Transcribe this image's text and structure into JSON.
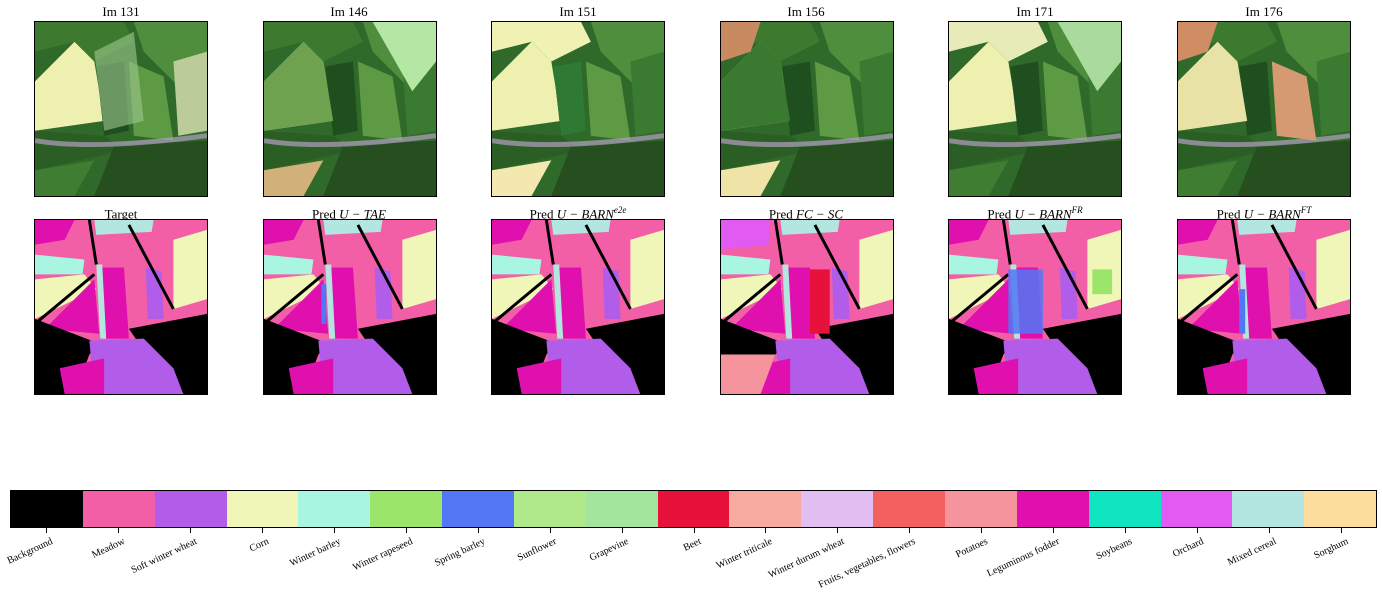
{
  "chart_data": {
    "type": "image_grid_with_categorical_colorbar",
    "rows": [
      {
        "kind": "satellite_image",
        "panels": [
          {
            "title": "Im 131"
          },
          {
            "title": "Im 146"
          },
          {
            "title": "Im 151"
          },
          {
            "title": "Im 156"
          },
          {
            "title": "Im 171"
          },
          {
            "title": "Im 176"
          }
        ]
      },
      {
        "kind": "segmentation_map",
        "panels": [
          {
            "prefix": "Target",
            "model": "",
            "sup": ""
          },
          {
            "prefix": "Pred ",
            "model": "U − TAE",
            "sup": ""
          },
          {
            "prefix": "Pred ",
            "model": "U − BARN",
            "sup": "e2e"
          },
          {
            "prefix": "Pred ",
            "model": "FC − SC",
            "sup": ""
          },
          {
            "prefix": "Pred ",
            "model": "U − BARN",
            "sup": "FR"
          },
          {
            "prefix": "Pred ",
            "model": "U − BARN",
            "sup": "FT"
          }
        ]
      }
    ],
    "colorbar": {
      "classes": [
        {
          "label": "Background",
          "color": "#000000"
        },
        {
          "label": "Meadow",
          "color": "#f25fa6"
        },
        {
          "label": "Soft winter wheat",
          "color": "#b15de9"
        },
        {
          "label": "Corn",
          "color": "#eff6b7"
        },
        {
          "label": "Winter barley",
          "color": "#a8f6e1"
        },
        {
          "label": "Winter rapeseed",
          "color": "#9ce56b"
        },
        {
          "label": "Spring barley",
          "color": "#5277f4"
        },
        {
          "label": "Sunflower",
          "color": "#b0e98a"
        },
        {
          "label": "Grapevine",
          "color": "#a4e59e"
        },
        {
          "label": "Beet",
          "color": "#e8113c"
        },
        {
          "label": "Winter triticale",
          "color": "#f6aaa0"
        },
        {
          "label": "Winter durum wheat",
          "color": "#e3bef2"
        },
        {
          "label": "Fruits, vegetables, flowers",
          "color": "#f26060"
        },
        {
          "label": "Potatoes",
          "color": "#f6949d"
        },
        {
          "label": "Leguminous fodder",
          "color": "#df10ad"
        },
        {
          "label": "Soybeans",
          "color": "#0fe6c1"
        },
        {
          "label": "Orchard",
          "color": "#e15af1"
        },
        {
          "label": "Mixed cereal",
          "color": "#b4e6e1"
        },
        {
          "label": "Sorghum",
          "color": "#fddd9d"
        }
      ]
    }
  }
}
